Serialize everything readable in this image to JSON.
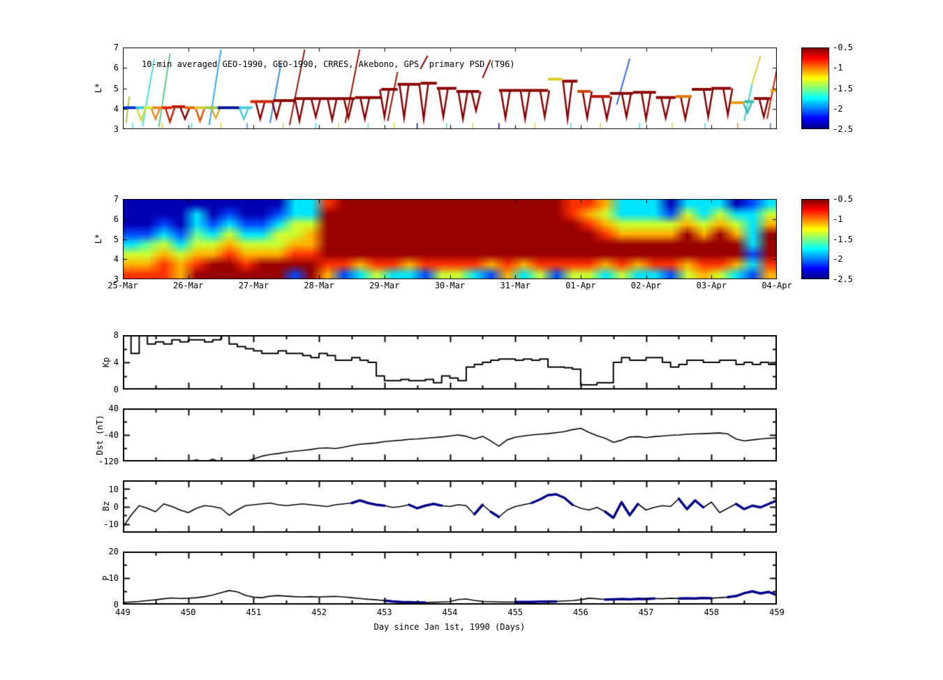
{
  "figure": {
    "background": "#ffffff",
    "title": "10-min averaged GEO-1990, GEO-1990, CRRES, Akebono, GPS  primary PSD (T96)",
    "xlabel": "Day since Jan 1st, 1990 (Days)"
  },
  "colorbar": {
    "tick_labels": [
      "-0.5",
      "-1",
      "-1.5",
      "-2",
      "-2.5"
    ],
    "value_min": -2.5,
    "value_max": -0.5,
    "colormap": "jet",
    "top_color": "#800000",
    "bottom_color": "#000080"
  },
  "date_axis": {
    "labels": [
      "25-Mar",
      "26-Mar",
      "27-Mar",
      "28-Mar",
      "29-Mar",
      "30-Mar",
      "31-Mar",
      "01-Apr",
      "02-Apr",
      "03-Apr",
      "04-Apr"
    ]
  },
  "day_axis": {
    "labels": [
      "449",
      "450",
      "451",
      "452",
      "453",
      "454",
      "455",
      "456",
      "457",
      "458",
      "459"
    ],
    "min": 449,
    "max": 459
  },
  "chart_data": [
    {
      "type": "scatter",
      "name": "psd-orbit-tracks",
      "ylabel": "L*",
      "ylim": [
        3,
        7
      ],
      "ytick_labels": [
        "7",
        "6",
        "5",
        "4",
        "3"
      ],
      "ytick_values": [
        7,
        6,
        5,
        4,
        3
      ],
      "xlim": [
        449,
        459
      ],
      "baseline": [
        [
          449.0,
          449.2,
          4.05,
          "#0033cc"
        ],
        [
          449.2,
          449.32,
          4.05,
          "#33ccee"
        ],
        [
          449.32,
          449.45,
          4.05,
          "#ccee44"
        ],
        [
          449.45,
          449.6,
          4.05,
          "#ee8822"
        ],
        [
          449.6,
          449.75,
          4.05,
          "#dd2200"
        ],
        [
          449.75,
          449.95,
          4.1,
          "#bb1100"
        ],
        [
          449.95,
          450.1,
          4.05,
          "#ee6600"
        ],
        [
          450.1,
          450.25,
          4.05,
          "#ddcc33"
        ],
        [
          450.25,
          450.45,
          4.05,
          "#99cc44"
        ],
        [
          450.45,
          450.78,
          4.05,
          "#001199"
        ],
        [
          450.78,
          450.98,
          4.05,
          "#44ccdd"
        ],
        [
          450.95,
          451.3,
          4.35,
          "#cc2200"
        ],
        [
          451.3,
          451.62,
          4.4,
          "#8b0000"
        ],
        [
          451.62,
          452.0,
          4.5,
          "#8b0000"
        ],
        [
          452.0,
          452.55,
          4.5,
          "#8b0000"
        ],
        [
          452.55,
          452.95,
          4.55,
          "#8b0000"
        ],
        [
          452.95,
          453.2,
          4.95,
          "#8b0000"
        ],
        [
          453.2,
          453.55,
          5.2,
          "#8b0000"
        ],
        [
          453.55,
          453.8,
          5.25,
          "#8b0000"
        ],
        [
          453.8,
          454.1,
          5.0,
          "#8b0000"
        ],
        [
          454.1,
          454.45,
          4.85,
          "#8b0000"
        ],
        [
          454.75,
          455.1,
          4.9,
          "#8b0000"
        ],
        [
          455.1,
          455.5,
          4.9,
          "#8b0000"
        ],
        [
          455.5,
          455.72,
          5.45,
          "#ddcc22"
        ],
        [
          455.72,
          455.95,
          5.35,
          "#8b0000"
        ],
        [
          455.95,
          456.15,
          4.85,
          "#cc4400"
        ],
        [
          456.15,
          456.45,
          4.6,
          "#bb1100"
        ],
        [
          456.45,
          456.8,
          4.75,
          "#8b0000"
        ],
        [
          456.8,
          457.15,
          4.8,
          "#8b0000"
        ],
        [
          457.15,
          457.45,
          4.55,
          "#8b0000"
        ],
        [
          457.45,
          457.7,
          4.6,
          "#dd7700"
        ],
        [
          457.7,
          458.0,
          4.95,
          "#8b0000"
        ],
        [
          458.0,
          458.3,
          5.0,
          "#8b0000"
        ],
        [
          458.3,
          458.5,
          4.3,
          "#ee9900"
        ],
        [
          458.5,
          458.65,
          4.35,
          "#33bbaa"
        ],
        [
          458.65,
          458.9,
          4.5,
          "#8b0000"
        ],
        [
          458.9,
          459.0,
          4.9,
          "#eeaa00"
        ]
      ],
      "dips": [
        [
          449.28,
          4.05,
          3.45,
          "#ccdd33"
        ],
        [
          449.5,
          4.05,
          3.5,
          "#ee8822"
        ],
        [
          449.72,
          4.05,
          3.35,
          "#cc2200"
        ],
        [
          449.95,
          4.05,
          3.5,
          "#8b0000"
        ],
        [
          450.18,
          4.05,
          3.4,
          "#dd5500"
        ],
        [
          450.42,
          4.05,
          3.55,
          "#ddaa22"
        ],
        [
          450.85,
          4.05,
          3.5,
          "#44ccdd"
        ],
        [
          451.1,
          4.35,
          3.5,
          "#8b0000"
        ],
        [
          451.35,
          4.4,
          3.55,
          "#8b0000"
        ],
        [
          451.7,
          4.5,
          3.4,
          "#8b0000"
        ],
        [
          451.95,
          4.5,
          3.6,
          "#8b0000"
        ],
        [
          452.2,
          4.5,
          3.45,
          "#8b0000"
        ],
        [
          452.45,
          4.5,
          3.55,
          "#8b0000"
        ],
        [
          452.7,
          4.55,
          3.5,
          "#8b0000"
        ],
        [
          453.0,
          4.95,
          3.6,
          "#8b0000"
        ],
        [
          453.3,
          5.2,
          3.55,
          "#8b0000"
        ],
        [
          453.6,
          5.25,
          3.5,
          "#8b0000"
        ],
        [
          453.9,
          5.0,
          3.6,
          "#8b0000"
        ],
        [
          454.2,
          4.85,
          3.5,
          "#8b0000"
        ],
        [
          454.4,
          4.85,
          3.9,
          "#8b0000"
        ],
        [
          454.85,
          4.9,
          3.55,
          "#8b0000"
        ],
        [
          455.15,
          4.9,
          3.5,
          "#8b0000"
        ],
        [
          455.45,
          4.9,
          3.6,
          "#8b0000"
        ],
        [
          455.8,
          5.35,
          3.5,
          "#8b0000"
        ],
        [
          456.1,
          4.85,
          3.55,
          "#8b0000"
        ],
        [
          456.4,
          4.6,
          3.5,
          "#8b0000"
        ],
        [
          456.7,
          4.75,
          3.6,
          "#8b0000"
        ],
        [
          457.0,
          4.8,
          3.5,
          "#8b0000"
        ],
        [
          457.3,
          4.55,
          3.55,
          "#8b0000"
        ],
        [
          457.6,
          4.6,
          3.5,
          "#8b0000"
        ],
        [
          457.95,
          4.95,
          3.6,
          "#8b0000"
        ],
        [
          458.25,
          5.0,
          3.7,
          "#8b0000"
        ],
        [
          458.55,
          4.35,
          3.8,
          "#33bbaa"
        ],
        [
          458.8,
          4.5,
          3.6,
          "#8b0000"
        ]
      ],
      "streaks": [
        [
          449.05,
          3.3,
          449.1,
          4.6,
          "#aacc33"
        ],
        [
          449.3,
          3.15,
          449.48,
          6.45,
          "#44ddee"
        ],
        [
          449.55,
          3.1,
          449.72,
          6.7,
          "#55cc88"
        ],
        [
          450.32,
          3.2,
          450.5,
          6.9,
          "#33aaff"
        ],
        [
          451.25,
          3.3,
          451.42,
          6.25,
          "#3388ff"
        ],
        [
          451.55,
          3.2,
          451.78,
          6.9,
          "#991100"
        ],
        [
          452.4,
          3.3,
          452.62,
          6.9,
          "#991100"
        ],
        [
          453.05,
          3.4,
          453.2,
          5.8,
          "#991100"
        ],
        [
          453.55,
          5.95,
          453.66,
          6.6,
          "#8b0000"
        ],
        [
          454.5,
          5.5,
          454.62,
          6.4,
          "#8b0000"
        ],
        [
          456.55,
          4.2,
          456.75,
          6.45,
          "#3366ee"
        ],
        [
          458.5,
          3.4,
          458.62,
          5.2,
          "#44ccdd"
        ],
        [
          458.62,
          5.2,
          458.75,
          6.6,
          "#ddcc33"
        ],
        [
          458.85,
          3.5,
          459.0,
          5.95,
          "#cc2200"
        ]
      ],
      "bottom_marks": [
        [
          449.15,
          "#44ddee"
        ],
        [
          449.6,
          "#ddcc33"
        ],
        [
          450.05,
          "#44ddee"
        ],
        [
          450.5,
          "#ddcc33"
        ],
        [
          450.9,
          "#3388ff"
        ],
        [
          451.45,
          "#ddcc33"
        ],
        [
          451.95,
          "#44ddee"
        ],
        [
          452.3,
          "#ddcc33"
        ],
        [
          452.75,
          "#44ddee"
        ],
        [
          453.15,
          "#ddcc33"
        ],
        [
          453.5,
          "#0000aa"
        ],
        [
          453.95,
          "#44ddee"
        ],
        [
          454.35,
          "#ddcc33"
        ],
        [
          454.75,
          "#0000aa"
        ],
        [
          455.3,
          "#ddcc33"
        ],
        [
          455.85,
          "#44ddee"
        ],
        [
          456.3,
          "#ddcc33"
        ],
        [
          456.9,
          "#44ddee"
        ],
        [
          457.4,
          "#ddcc33"
        ],
        [
          457.9,
          "#44ddee"
        ],
        [
          458.4,
          "#ee8822"
        ],
        [
          458.9,
          "#3366ee"
        ]
      ]
    },
    {
      "type": "heatmap",
      "name": "psd-model-map",
      "ylabel": "L*",
      "ylim": [
        3,
        7
      ],
      "ytick_labels": [
        "7",
        "6",
        "5",
        "4",
        "3"
      ],
      "ytick_values": [
        7,
        6,
        5,
        4,
        3
      ],
      "xlim": [
        449,
        459
      ],
      "value_range": [
        -2.5,
        -0.5
      ],
      "x_start": 449,
      "x_step": 0.25,
      "palette": {
        "A": -2.4,
        "B": -2.1,
        "C": -1.8,
        "D": -1.55,
        "E": -1.35,
        "F": -1.1,
        "G": -0.85,
        "H": -0.55
      },
      "columns": [
        "AAABCEFG",
        "AAABDEFG",
        "AABCEFGG",
        "AAABCEFF",
        "ACCDEFGH",
        "AABCEFHH",
        "ABCEFGHH",
        "AABCEFGH",
        "AABCEFHH",
        "ABCEEFHH",
        "CCEEFGHB",
        "CCEFFGHH",
        "GHHHHHGF",
        "HHHHHHGB",
        "HHHHHHFC",
        "HHHHHHGE",
        "HHHHHHGC",
        "HHHHHHFC",
        "HHHHHHGB",
        "HHHHHHGE",
        "HHHHHHGE",
        "HHHHHHGC",
        "HHHHHHFB",
        "HHHHHHGF",
        "HHHHHHFC",
        "HHHHHHGE",
        "HHHHHHGB",
        "GGHHHHGE",
        "GFGHHHGE",
        "FEFGHHFC",
        "CCEFHHGE",
        "CCEFHHFC",
        "CCEFHHGC",
        "ABEFHHGB",
        "CEFHHHFE",
        "CCEFHHGF",
        "CEFHHHGE",
        "ACEFHHFC",
        "BCCCCBCB",
        "CEFHHHGF"
      ]
    },
    {
      "type": "line",
      "name": "Kp",
      "ylabel": "Kp",
      "ylim": [
        0,
        8
      ],
      "ytick_labels": [
        "8",
        "4",
        "0"
      ],
      "ytick_values": [
        8,
        4,
        0
      ],
      "minor_yticks": [
        2,
        6
      ],
      "step": true,
      "x_start": 449,
      "x_step": 0.125,
      "values": [
        8,
        5.3,
        8,
        6.7,
        7,
        6.7,
        7.3,
        7,
        7.3,
        7.3,
        7,
        7.3,
        8,
        6.7,
        6.3,
        6,
        5.7,
        5.3,
        5.3,
        5.7,
        5.3,
        5.3,
        5,
        4.7,
        5.3,
        5,
        4.3,
        4.3,
        4.7,
        4.3,
        4,
        2,
        1.3,
        1.3,
        1.5,
        1.3,
        1.3,
        1.5,
        1,
        2,
        1.7,
        1.3,
        3.3,
        3.7,
        4,
        4.3,
        4.5,
        4.5,
        4.3,
        4.5,
        4.3,
        4.5,
        3.3,
        3.3,
        3.2,
        3,
        0.7,
        0.7,
        1,
        1,
        4,
        4.7,
        4.3,
        4.3,
        4.7,
        4.7,
        4,
        3.3,
        3.7,
        4.3,
        4.3,
        4,
        4,
        4.3,
        4.3,
        3.7,
        4,
        3.7,
        4,
        3.7,
        4,
        5.3,
        5.3,
        5,
        4.7
      ]
    },
    {
      "type": "line",
      "name": "Dst",
      "ylabel": "Dst (nT)",
      "ylim": [
        -120,
        40
      ],
      "ytick_labels": [
        "40",
        "-40",
        "-120"
      ],
      "ytick_values": [
        40,
        -40,
        -120
      ],
      "minor_yticks": [
        0,
        -80
      ],
      "step": false,
      "x_start": 449,
      "x_step": 0.125,
      "values": [
        -122,
        -122,
        -122,
        -122,
        -122,
        -122,
        -122,
        -122,
        -122,
        -115,
        -122,
        -113,
        -122,
        -122,
        -122,
        -121,
        -112,
        -104,
        -99,
        -96,
        -92,
        -89,
        -87,
        -84,
        -80,
        -79,
        -81,
        -77,
        -72,
        -68,
        -66,
        -64,
        -60,
        -58,
        -56,
        -53,
        -52,
        -50,
        -48,
        -46,
        -43,
        -40,
        -44,
        -52,
        -44,
        -58,
        -74,
        -55,
        -47,
        -43,
        -40,
        -38,
        -36,
        -33,
        -30,
        -24,
        -20,
        -32,
        -42,
        -50,
        -62,
        -56,
        -46,
        -45,
        -48,
        -45,
        -43,
        -41,
        -40,
        -38,
        -37,
        -36,
        -35,
        -34,
        -37,
        -52,
        -58,
        -55,
        -52,
        -50,
        -49
      ]
    },
    {
      "type": "line",
      "name": "Bz",
      "ylabel": "Bz",
      "ylim": [
        -15,
        15
      ],
      "ytick_labels": [
        "10",
        "0",
        "-10"
      ],
      "ytick_values": [
        10,
        0,
        -10
      ],
      "minor_yticks": [
        5,
        -5
      ],
      "step": false,
      "x_start": 449,
      "x_step": 0.125,
      "values": [
        -12,
        -5,
        0.5,
        -1,
        -3,
        1.5,
        0,
        -2,
        -3.5,
        -1,
        0.5,
        0,
        -1,
        -5,
        -2,
        0.5,
        1,
        1.5,
        2,
        1,
        0.5,
        1,
        1.5,
        1,
        0.5,
        0,
        1,
        1.5,
        2,
        3.5,
        2,
        1,
        0.5,
        -0.5,
        0,
        1,
        -1,
        0.5,
        1.5,
        0.5,
        0,
        1,
        0.5,
        -4.5,
        1,
        -3,
        -6,
        -2,
        0,
        1,
        2,
        4,
        6.5,
        7,
        5,
        1,
        -1,
        -2,
        -0.5,
        -3,
        -6.5,
        2.5,
        -5,
        1.5,
        -2,
        -0.5,
        0.5,
        0,
        4.5,
        -1.5,
        3.5,
        -0.5,
        2.5,
        -3.5,
        -1,
        1.5,
        -1.5,
        0.5,
        -0.5,
        1.5,
        3.5
      ],
      "highlight_color": "#00008b",
      "highlights": [
        [
          452.5,
          453.1
        ],
        [
          453.3,
          453.95
        ],
        [
          454.28,
          454.5
        ],
        [
          454.56,
          454.8
        ],
        [
          455.25,
          455.9
        ],
        [
          456.3,
          456.95
        ],
        [
          457.4,
          457.95
        ],
        [
          458.05,
          458.22
        ],
        [
          458.3,
          459
        ]
      ]
    },
    {
      "type": "line",
      "name": "P",
      "ylabel": "P",
      "ylim": [
        0,
        20
      ],
      "ytick_labels": [
        "20",
        "10",
        "0"
      ],
      "ytick_values": [
        20,
        10,
        0
      ],
      "minor_yticks": [
        5,
        15
      ],
      "step": false,
      "x_start": 449,
      "x_step": 0.125,
      "values": [
        0.8,
        1,
        1.2,
        1.5,
        1.8,
        2.2,
        2.5,
        2.3,
        2.4,
        2.6,
        3,
        3.6,
        4.5,
        5.3,
        4.8,
        3.5,
        2.8,
        2.6,
        3.2,
        3.4,
        3.2,
        3,
        2.9,
        3,
        2.9,
        3,
        3.1,
        2.9,
        2.6,
        2.3,
        2,
        1.8,
        1.5,
        1.2,
        1,
        0.9,
        0.8,
        0.8,
        0.9,
        1,
        1.1,
        1.9,
        2.1,
        1.6,
        1.2,
        1.1,
        1,
        1,
        1,
        1,
        1,
        1.1,
        1.1,
        1.2,
        1.4,
        1.5,
        1.8,
        2.4,
        2.2,
        1.9,
        2,
        2.1,
        2,
        2.2,
        2.1,
        2.3,
        2.2,
        2.4,
        2.3,
        2.4,
        2.3,
        2.5,
        2.4,
        2.6,
        2.8,
        3.2,
        4.3,
        5,
        4.2,
        4.8,
        3.6
      ],
      "highlight_color": "#00008b",
      "highlights": [
        [
          453.0,
          453.65
        ],
        [
          454.95,
          455.7
        ],
        [
          456.35,
          457.15
        ],
        [
          457.4,
          458.05
        ],
        [
          458.25,
          459
        ]
      ]
    }
  ]
}
